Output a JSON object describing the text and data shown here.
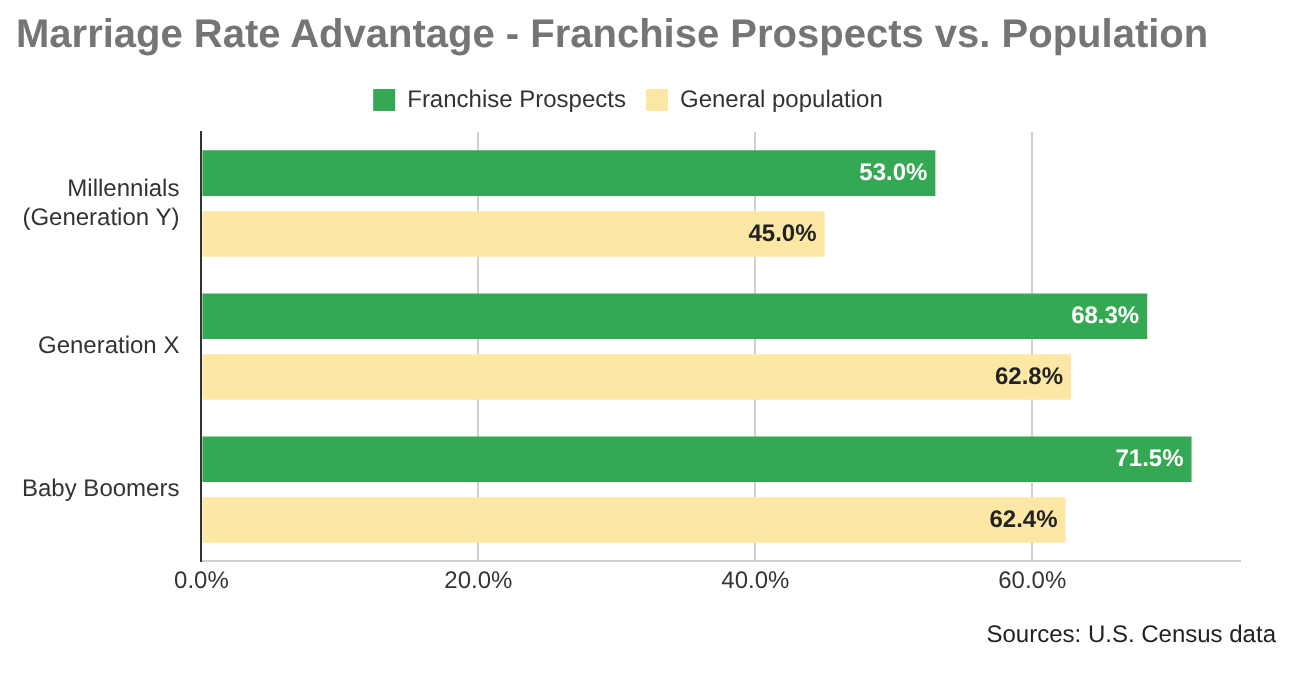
{
  "chart_data": {
    "type": "bar",
    "orientation": "horizontal",
    "title": "Marriage Rate Advantage - Franchise Prospects vs. Population",
    "categories": [
      "Millennials\n(Generation Y)",
      "Generation X",
      "Baby Boomers"
    ],
    "series": [
      {
        "name": "Franchise Prospects",
        "color": "#34a853",
        "values": [
          53.0,
          68.3,
          71.5
        ],
        "value_labels": [
          "53.0%",
          "68.3%",
          "71.5%"
        ]
      },
      {
        "name": "General population",
        "color": "#fce8a4",
        "values": [
          45.0,
          62.8,
          62.4
        ],
        "value_labels": [
          "45.0%",
          "62.8%",
          "62.4%"
        ]
      }
    ],
    "xlim": [
      0,
      75
    ],
    "xticks": [
      {
        "value": 0,
        "label": "0.0%"
      },
      {
        "value": 20,
        "label": "20.0%"
      },
      {
        "value": 40,
        "label": "40.0%"
      },
      {
        "value": 60,
        "label": "60.0%"
      }
    ],
    "grid": "x",
    "legend": "top",
    "annotations": [
      "Sources: U.S. Census data"
    ]
  }
}
